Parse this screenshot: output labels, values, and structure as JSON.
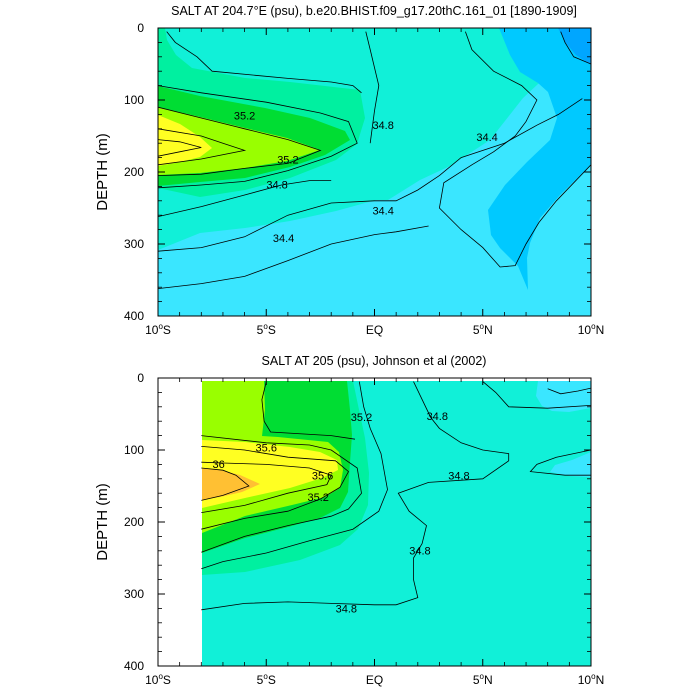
{
  "chart_data": [
    {
      "type": "contour",
      "title": "SALT AT 204.7°E (psu), b.e20.BHIST.f09_g17.20thC.161_01 [1890-1909]",
      "xlabel": "",
      "ylabel": "DEPTH (m)",
      "xlim": [
        -10,
        10
      ],
      "ylim": [
        0,
        400
      ],
      "y_inverted": true,
      "x_ticks": [
        {
          "value": -10,
          "num": "10",
          "suffix": "S"
        },
        {
          "value": -5,
          "num": "5",
          "suffix": "S"
        },
        {
          "value": 0,
          "num": "EQ",
          "suffix": ""
        },
        {
          "value": 5,
          "num": "5",
          "suffix": "N"
        },
        {
          "value": 10,
          "num": "10",
          "suffix": "N"
        }
      ],
      "y_ticks": [
        0,
        100,
        200,
        300,
        400
      ],
      "contour_labels": [
        {
          "text": "35.2",
          "x": -6.0,
          "y": 127
        },
        {
          "text": "35.2",
          "x": -4.0,
          "y": 188
        },
        {
          "text": "34.8",
          "x": -4.5,
          "y": 223
        },
        {
          "text": "34.8",
          "x": 0.4,
          "y": 140
        },
        {
          "text": "34.4",
          "x": 0.4,
          "y": 259
        },
        {
          "text": "34.4",
          "x": -4.2,
          "y": 297
        },
        {
          "text": "34.4",
          "x": 5.2,
          "y": 157
        }
      ],
      "contour_lines": [
        [
          [
            -10,
            362
          ],
          [
            -8,
            355
          ],
          [
            -6,
            345
          ],
          [
            -4,
            323
          ],
          [
            -2,
            300
          ],
          [
            0,
            287
          ],
          [
            1,
            283
          ],
          [
            2.5,
            275
          ]
        ],
        [
          [
            -10,
            310
          ],
          [
            -8,
            305
          ],
          [
            -6,
            290
          ],
          [
            -4,
            260
          ],
          [
            -2,
            243
          ],
          [
            0,
            240
          ],
          [
            1,
            240
          ],
          [
            2,
            225
          ],
          [
            3,
            205
          ],
          [
            4,
            180
          ],
          [
            6,
            160
          ],
          [
            7.5,
            135
          ],
          [
            8.5,
            120
          ],
          [
            9.6,
            98
          ]
        ],
        [
          [
            -10,
            262
          ],
          [
            -8,
            248
          ],
          [
            -6,
            232
          ],
          [
            -4.3,
            218
          ],
          [
            -3,
            212
          ],
          [
            -2,
            212
          ]
        ],
        [
          [
            -10,
            222
          ],
          [
            -8,
            218
          ],
          [
            -6,
            213
          ],
          [
            -4,
            198
          ],
          [
            -2,
            178
          ],
          [
            -0.8,
            160
          ],
          [
            -1.2,
            130
          ],
          [
            -2.5,
            118
          ],
          [
            -5,
            103
          ],
          [
            -8,
            90
          ],
          [
            -10,
            80
          ]
        ],
        [
          [
            -10,
            205
          ],
          [
            -8,
            203
          ],
          [
            -6,
            195
          ],
          [
            -4,
            188
          ],
          [
            -2.5,
            170
          ],
          [
            -4,
            155
          ],
          [
            -6,
            140
          ],
          [
            -8,
            125
          ],
          [
            -10,
            110
          ]
        ],
        [
          [
            -10,
            190
          ],
          [
            -8,
            182
          ],
          [
            -6,
            170
          ],
          [
            -7,
            160
          ],
          [
            -8,
            150
          ],
          [
            -10,
            140
          ]
        ],
        [
          [
            -10,
            178
          ],
          [
            -9,
            172
          ],
          [
            -8,
            166
          ],
          [
            -9,
            158
          ],
          [
            -10,
            155
          ]
        ],
        [
          [
            -0.4,
            5
          ],
          [
            -0.2,
            30
          ],
          [
            0,
            55
          ],
          [
            0.2,
            80
          ],
          [
            0,
            115
          ],
          [
            -0.2,
            160
          ]
        ],
        [
          [
            4.2,
            5
          ],
          [
            4.5,
            30
          ],
          [
            5.5,
            60
          ],
          [
            6.8,
            80
          ],
          [
            7.5,
            100
          ],
          [
            7,
            130
          ],
          [
            6.5,
            150
          ],
          [
            5.5,
            172
          ],
          [
            4.5,
            190
          ],
          [
            3.2,
            215
          ],
          [
            3,
            250
          ],
          [
            4,
            280
          ],
          [
            5,
            305
          ],
          [
            5.8,
            332
          ],
          [
            6.5,
            330
          ],
          [
            7,
            300
          ],
          [
            7.6,
            270
          ],
          [
            8.4,
            240
          ],
          [
            9.2,
            215
          ],
          [
            10,
            190
          ]
        ],
        [
          [
            8.6,
            5
          ],
          [
            8.8,
            20
          ],
          [
            9.2,
            40
          ],
          [
            10,
            50
          ]
        ],
        [
          [
            -9.6,
            5
          ],
          [
            -9.2,
            20
          ],
          [
            -8.2,
            40
          ],
          [
            -7.5,
            60
          ],
          [
            -4,
            70
          ],
          [
            -2,
            75
          ],
          [
            -1,
            80
          ],
          [
            -0.6,
            90
          ]
        ]
      ],
      "regions": [
        {
          "salinity": "<34.0",
          "color": "#00a6ff"
        },
        {
          "salinity": "34.0-34.4",
          "color": "#00c9ff"
        },
        {
          "salinity": "34.4-34.8",
          "color": "#3ae6ff"
        },
        {
          "salinity": "34.8-35.0",
          "color": "#11f0d8"
        },
        {
          "salinity": "35.0-35.2",
          "color": "#00f0a0"
        },
        {
          "salinity": "35.2-35.4",
          "color": "#00dd33"
        },
        {
          "salinity": "35.4-35.6",
          "color": "#99ff00"
        },
        {
          "salinity": ">35.6",
          "color": "#ffff22"
        }
      ]
    },
    {
      "type": "contour",
      "title": "SALT AT 205 (psu), Johnson et al (2002)",
      "xlabel": "",
      "ylabel": "DEPTH (m)",
      "xlim": [
        -10,
        10
      ],
      "ylim": [
        0,
        400
      ],
      "y_inverted": true,
      "data_x_range": [
        -8,
        10
      ],
      "x_ticks": [
        {
          "value": -10,
          "num": "10",
          "suffix": "S"
        },
        {
          "value": -5,
          "num": "5",
          "suffix": "S"
        },
        {
          "value": 0,
          "num": "EQ",
          "suffix": ""
        },
        {
          "value": 5,
          "num": "5",
          "suffix": "N"
        },
        {
          "value": 10,
          "num": "10",
          "suffix": "N"
        }
      ],
      "y_ticks": [
        0,
        100,
        200,
        300,
        400
      ],
      "contour_labels": [
        {
          "text": "35.6",
          "x": -5.0,
          "y": 102
        },
        {
          "text": "36",
          "x": -7.2,
          "y": 125
        },
        {
          "text": "35.6",
          "x": -2.4,
          "y": 141
        },
        {
          "text": "35.2",
          "x": -2.6,
          "y": 171
        },
        {
          "text": "35.2",
          "x": -0.6,
          "y": 60
        },
        {
          "text": "34.8",
          "x": 2.9,
          "y": 58
        },
        {
          "text": "34.8",
          "x": 3.9,
          "y": 141
        },
        {
          "text": "34.8",
          "x": 2.1,
          "y": 245
        },
        {
          "text": "34.8",
          "x": -1.3,
          "y": 326
        }
      ],
      "contour_lines": [
        [
          [
            -8,
            322
          ],
          [
            -6,
            313
          ],
          [
            -4,
            311
          ],
          [
            -2,
            313
          ],
          [
            0,
            315
          ],
          [
            1,
            315
          ],
          [
            2,
            305
          ],
          [
            1.8,
            280
          ],
          [
            1.8,
            250
          ],
          [
            2.2,
            230
          ],
          [
            2.4,
            205
          ],
          [
            1.6,
            185
          ],
          [
            1.1,
            160
          ],
          [
            2.5,
            145
          ],
          [
            5,
            140
          ],
          [
            6.2,
            115
          ],
          [
            6.2,
            105
          ],
          [
            5,
            100
          ],
          [
            4,
            90
          ],
          [
            3,
            70
          ],
          [
            2.6,
            55
          ],
          [
            1.8,
            5
          ]
        ],
        [
          [
            -8,
            265
          ],
          [
            -7,
            255
          ],
          [
            -5,
            243
          ],
          [
            -3,
            226
          ],
          [
            -1,
            210
          ],
          [
            0.2,
            185
          ],
          [
            0.6,
            155
          ],
          [
            0.3,
            105
          ],
          [
            -0.2,
            70
          ],
          [
            -0.5,
            40
          ],
          [
            -0.7,
            5
          ]
        ],
        [
          [
            -8,
            242
          ],
          [
            -6,
            220
          ],
          [
            -4,
            205
          ],
          [
            -2,
            192
          ],
          [
            -1.2,
            182
          ],
          [
            -0.6,
            160
          ],
          [
            -0.8,
            125
          ],
          [
            -2,
            100
          ],
          [
            -3,
            93
          ],
          [
            -5,
            90
          ],
          [
            -8,
            80
          ]
        ],
        [
          [
            -8,
            210
          ],
          [
            -6,
            195
          ],
          [
            -4,
            185
          ],
          [
            -2.5,
            168
          ],
          [
            -1.6,
            152
          ],
          [
            -1.2,
            130
          ],
          [
            -1.8,
            115
          ],
          [
            -4,
            110
          ],
          [
            -6,
            100
          ],
          [
            -8,
            95
          ]
        ],
        [
          [
            -8,
            187
          ],
          [
            -6,
            177
          ],
          [
            -4,
            160
          ],
          [
            -2.2,
            148
          ],
          [
            -2,
            135
          ],
          [
            -3,
            125
          ],
          [
            -5,
            120
          ],
          [
            -7,
            118
          ],
          [
            -8,
            117
          ]
        ],
        [
          [
            -8,
            170
          ],
          [
            -7,
            163
          ],
          [
            -5.8,
            150
          ],
          [
            -6.4,
            135
          ],
          [
            -7,
            128
          ],
          [
            -8,
            125
          ]
        ],
        [
          [
            -5,
            5
          ],
          [
            -5.2,
            30
          ],
          [
            -5.1,
            60
          ],
          [
            -4.8,
            75
          ],
          [
            -2,
            80
          ],
          [
            -0.9,
            85
          ]
        ],
        [
          [
            5,
            5
          ],
          [
            5.6,
            20
          ],
          [
            6.2,
            40
          ],
          [
            8,
            42
          ],
          [
            10,
            38
          ]
        ],
        [
          [
            10,
            100
          ],
          [
            8.4,
            110
          ],
          [
            7.5,
            120
          ],
          [
            7.2,
            130
          ],
          [
            8.8,
            135
          ],
          [
            10,
            135
          ]
        ],
        [
          [
            8,
            15
          ],
          [
            8.6,
            22
          ],
          [
            9.4,
            18
          ],
          [
            10,
            14
          ]
        ]
      ],
      "regions": [
        {
          "salinity": "34.4-34.8",
          "color": "#3ae6ff"
        },
        {
          "salinity": "34.8-35.0",
          "color": "#11f0d8"
        },
        {
          "salinity": "35.0-35.2",
          "color": "#00f0a0"
        },
        {
          "salinity": "35.2-35.6",
          "color": "#00dd33"
        },
        {
          "salinity": "35.6-35.8",
          "color": "#99ff00"
        },
        {
          "salinity": "35.8-36.0",
          "color": "#ffff22"
        },
        {
          "salinity": ">36.0",
          "color": "#ffc033"
        }
      ]
    }
  ]
}
